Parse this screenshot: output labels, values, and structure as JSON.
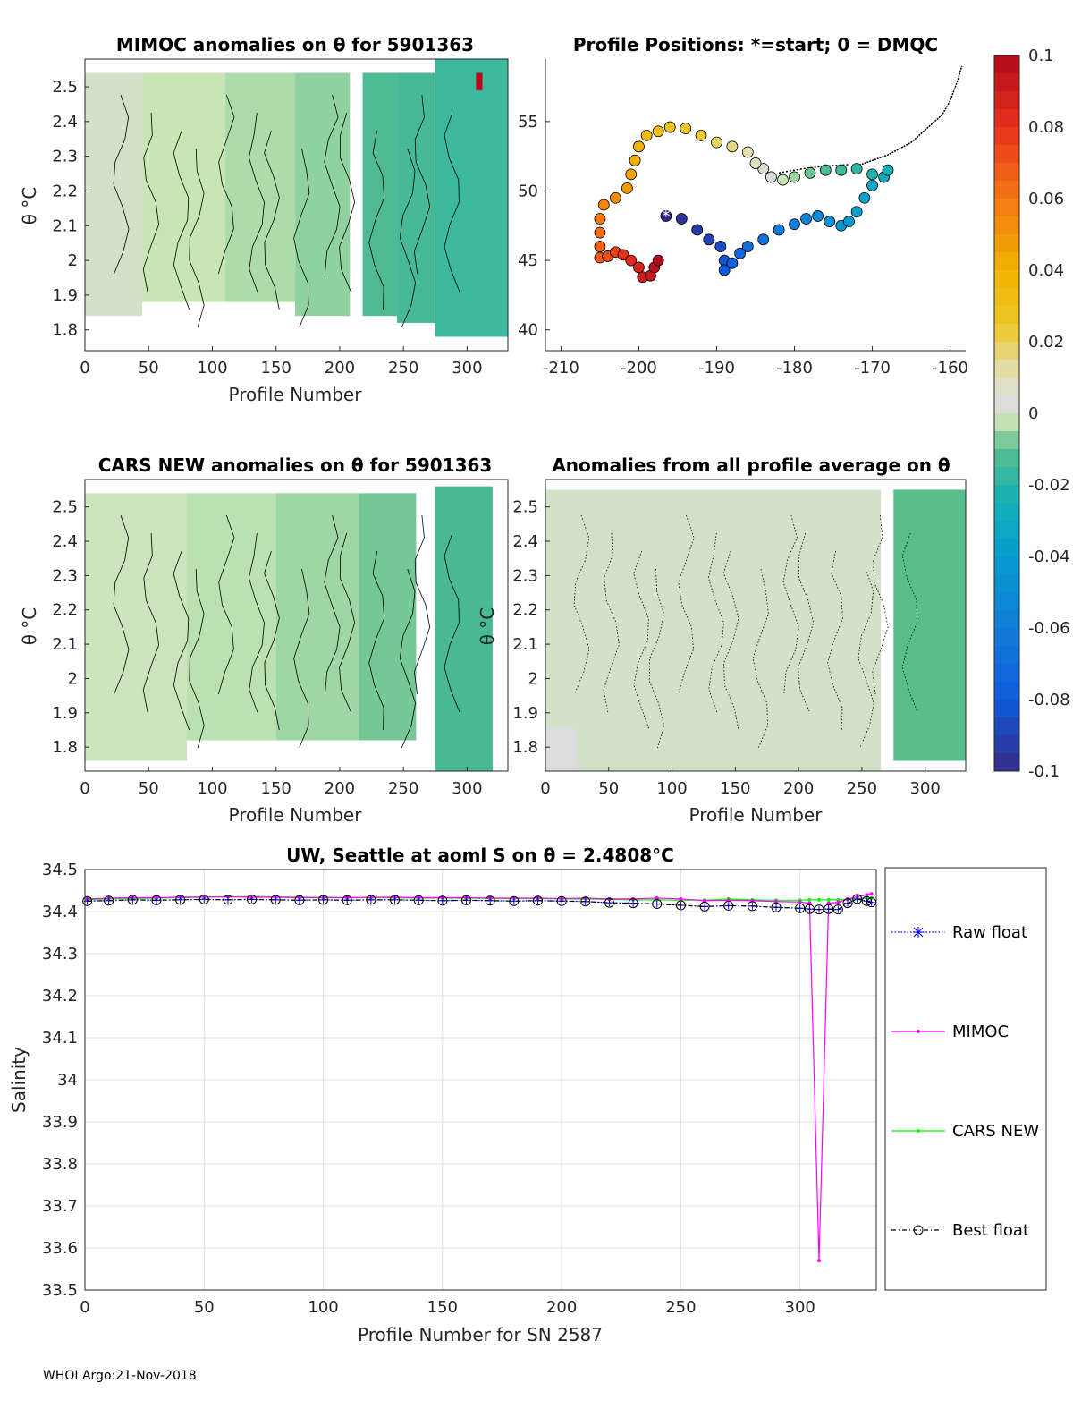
{
  "footer": "WHOI Argo:21-Nov-2018",
  "colorbar": {
    "ticks": [
      "0.1",
      "0.08",
      "0.06",
      "0.04",
      "0.02",
      "0",
      "-0.02",
      "-0.04",
      "-0.06",
      "-0.08",
      "-0.1"
    ],
    "range": [
      -0.1,
      0.1
    ]
  },
  "chart_data": [
    {
      "id": "mimoc",
      "type": "heatmap",
      "title": "MIMOC anomalies on θ  for 5901363",
      "xlabel": "Profile Number",
      "ylabel": "θ °C",
      "xlim": [
        0,
        332
      ],
      "ylim": [
        1.74,
        2.58
      ],
      "xticks": [
        "0",
        "50",
        "100",
        "150",
        "200",
        "250",
        "300"
      ],
      "yticks": [
        "1.8",
        "1.9",
        "2",
        "2.1",
        "2.2",
        "2.3",
        "2.4",
        "2.5"
      ],
      "blocks": [
        {
          "x0": 0,
          "x1": 45,
          "y0": 1.84,
          "y1": 2.54,
          "v": 0.0
        },
        {
          "x0": 45,
          "x1": 110,
          "y0": 1.88,
          "y1": 2.54,
          "v": -0.002
        },
        {
          "x0": 110,
          "x1": 165,
          "y0": 1.88,
          "y1": 2.54,
          "v": -0.004
        },
        {
          "x0": 165,
          "x1": 208,
          "y0": 1.84,
          "y1": 2.54,
          "v": -0.006
        },
        {
          "x0": 218,
          "x1": 245,
          "y0": 1.84,
          "y1": 2.54,
          "v": -0.012
        },
        {
          "x0": 245,
          "x1": 275,
          "y0": 1.82,
          "y1": 2.54,
          "v": -0.014
        },
        {
          "x0": 275,
          "x1": 332,
          "y0": 1.78,
          "y1": 2.58,
          "v": -0.016
        },
        {
          "x0": 307,
          "x1": 312,
          "y0": 2.49,
          "y1": 2.54,
          "v": 0.1
        }
      ]
    },
    {
      "id": "positions",
      "type": "scatter",
      "title": "Profile Positions: *=start; 0 = DMQC",
      "xlim": [
        -212,
        -158
      ],
      "ylim": [
        38.5,
        59.5
      ],
      "xticks": [
        "-210",
        "-200",
        "-190",
        "-180",
        "-170",
        "-160"
      ],
      "yticks": [
        "40",
        "45",
        "50",
        "55"
      ],
      "track": [
        [
          -196.5,
          48.2
        ],
        [
          -194.5,
          48.0
        ],
        [
          -192.5,
          47.2
        ],
        [
          -191.0,
          46.5
        ],
        [
          -189.5,
          46.0
        ],
        [
          -189.0,
          45.0
        ],
        [
          -189.0,
          44.3
        ],
        [
          -188.0,
          44.8
        ],
        [
          -187.0,
          45.5
        ],
        [
          -186.0,
          46.0
        ],
        [
          -184.0,
          46.5
        ],
        [
          -182.0,
          47.2
        ],
        [
          -180.0,
          47.6
        ],
        [
          -178.5,
          48.0
        ],
        [
          -177.0,
          48.2
        ],
        [
          -175.5,
          47.8
        ],
        [
          -174.0,
          47.5
        ],
        [
          -173.0,
          47.8
        ],
        [
          -172.0,
          48.5
        ],
        [
          -171.0,
          49.5
        ],
        [
          -170.0,
          50.4
        ],
        [
          -168.5,
          51.0
        ],
        [
          -168.0,
          51.5
        ],
        [
          -170.0,
          51.2
        ],
        [
          -172.0,
          51.6
        ],
        [
          -174.0,
          51.5
        ],
        [
          -176.0,
          51.5
        ],
        [
          -178.0,
          51.3
        ],
        [
          -180.0,
          51.0
        ],
        [
          -181.5,
          50.8
        ],
        [
          -183.0,
          51.0
        ],
        [
          -184.0,
          51.6
        ],
        [
          -185.0,
          52.0
        ],
        [
          -186.0,
          52.8
        ],
        [
          -188.0,
          53.2
        ],
        [
          -190.0,
          53.5
        ],
        [
          -192.0,
          54.0
        ],
        [
          -194.0,
          54.5
        ],
        [
          -196.0,
          54.6
        ],
        [
          -197.5,
          54.3
        ],
        [
          -199.0,
          54.0
        ],
        [
          -200.0,
          53.2
        ],
        [
          -200.5,
          52.2
        ],
        [
          -201.0,
          51.2
        ],
        [
          -201.5,
          50.2
        ],
        [
          -203.0,
          49.5
        ],
        [
          -204.5,
          49.0
        ],
        [
          -205.0,
          48.0
        ],
        [
          -205.0,
          47.0
        ],
        [
          -205.0,
          46.0
        ],
        [
          -205.0,
          45.2
        ],
        [
          -204.0,
          45.3
        ],
        [
          -203.0,
          45.6
        ],
        [
          -202.0,
          45.4
        ],
        [
          -201.0,
          45.0
        ],
        [
          -200.0,
          44.5
        ],
        [
          -199.5,
          43.8
        ],
        [
          -198.5,
          43.9
        ],
        [
          -198.0,
          44.5
        ],
        [
          -197.5,
          45.0
        ]
      ]
    },
    {
      "id": "cars",
      "type": "heatmap",
      "title": "CARS NEW anomalies on θ for 5901363",
      "xlabel": "Profile Number",
      "ylabel": "θ °C",
      "xlim": [
        0,
        332
      ],
      "ylim": [
        1.73,
        2.58
      ],
      "xticks": [
        "0",
        "50",
        "100",
        "150",
        "200",
        "250",
        "300"
      ],
      "yticks": [
        "1.8",
        "1.9",
        "2",
        "2.1",
        "2.2",
        "2.3",
        "2.4",
        "2.5"
      ],
      "blocks": [
        {
          "x0": 0,
          "x1": 80,
          "y0": 1.76,
          "y1": 2.54,
          "v": -0.001
        },
        {
          "x0": 80,
          "x1": 150,
          "y0": 1.82,
          "y1": 2.54,
          "v": -0.003
        },
        {
          "x0": 150,
          "x1": 215,
          "y0": 1.82,
          "y1": 2.54,
          "v": -0.005
        },
        {
          "x0": 215,
          "x1": 260,
          "y0": 1.82,
          "y1": 2.54,
          "v": -0.008
        },
        {
          "x0": 275,
          "x1": 320,
          "y0": 1.73,
          "y1": 2.56,
          "v": -0.013
        }
      ]
    },
    {
      "id": "profile-average",
      "type": "heatmap",
      "title": "Anomalies from all profile average on θ",
      "xlabel": "Profile Number",
      "ylabel": "θ °C",
      "xlim": [
        0,
        332
      ],
      "ylim": [
        1.73,
        2.58
      ],
      "xticks": [
        "0",
        "50",
        "100",
        "150",
        "200",
        "250",
        "300"
      ],
      "yticks": [
        "1.8",
        "1.9",
        "2",
        "2.1",
        "2.2",
        "2.3",
        "2.4",
        "2.5"
      ],
      "blocks": [
        {
          "x0": 0,
          "x1": 265,
          "y0": 1.73,
          "y1": 2.55,
          "v": 0.0
        },
        {
          "x0": 0,
          "x1": 25,
          "y0": 1.73,
          "y1": 1.86,
          "v": 0.002
        },
        {
          "x0": 275,
          "x1": 332,
          "y0": 1.76,
          "y1": 2.55,
          "v": -0.01
        }
      ]
    },
    {
      "id": "salinity",
      "type": "line",
      "title": "UW, Seattle at aoml S on θ = 2.4808°C",
      "xlabel": "Profile Number for SN 2587",
      "ylabel": "Salinity",
      "xlim": [
        0,
        332
      ],
      "ylim": [
        33.5,
        34.5
      ],
      "xticks": [
        "0",
        "50",
        "100",
        "150",
        "200",
        "250",
        "300"
      ],
      "yticks": [
        "34.5",
        "34.4",
        "34.3",
        "34.2",
        "34.1",
        "34",
        "33.9",
        "33.8",
        "33.7",
        "33.6",
        "33.5"
      ],
      "x": [
        1,
        10,
        20,
        30,
        40,
        50,
        60,
        70,
        80,
        90,
        100,
        110,
        120,
        130,
        140,
        150,
        160,
        170,
        180,
        190,
        200,
        210,
        220,
        230,
        240,
        250,
        260,
        270,
        280,
        290,
        300,
        304,
        308,
        312,
        316,
        320,
        324,
        328,
        330
      ],
      "series": [
        {
          "name": "Raw float",
          "color": "#0000ff",
          "values": [
            34.425,
            34.426,
            34.428,
            34.427,
            34.428,
            34.429,
            34.428,
            34.429,
            34.428,
            34.427,
            34.428,
            34.427,
            34.428,
            34.428,
            34.427,
            34.426,
            34.427,
            34.426,
            34.425,
            34.426,
            34.425,
            34.424,
            34.421,
            34.42,
            34.418,
            34.415,
            34.412,
            34.414,
            34.413,
            34.41,
            34.408,
            34.406,
            34.405,
            34.406,
            34.405,
            34.42,
            34.43,
            34.425,
            34.422
          ]
        },
        {
          "name": "MIMOC",
          "color": "#ff00ff",
          "values": [
            34.43,
            34.432,
            34.433,
            34.433,
            34.434,
            34.435,
            34.435,
            34.434,
            34.434,
            34.433,
            34.433,
            34.433,
            34.434,
            34.434,
            34.433,
            34.433,
            34.433,
            34.432,
            34.432,
            34.432,
            34.431,
            34.432,
            34.43,
            34.43,
            34.432,
            34.43,
            34.426,
            34.427,
            34.426,
            34.424,
            34.423,
            34.42,
            33.57,
            34.42,
            34.422,
            34.43,
            34.435,
            34.44,
            34.442
          ]
        },
        {
          "name": "CARS NEW",
          "color": "#00ff00",
          "values": [
            34.428,
            34.43,
            34.431,
            34.432,
            34.433,
            34.434,
            34.435,
            34.436,
            34.435,
            34.434,
            34.434,
            34.433,
            34.433,
            34.433,
            34.432,
            34.432,
            34.432,
            34.431,
            34.431,
            34.431,
            34.43,
            34.43,
            34.429,
            34.428,
            34.428,
            34.427,
            34.427,
            34.43,
            34.428,
            34.427,
            34.427,
            34.428,
            34.428,
            34.428,
            34.428,
            34.429,
            34.43,
            34.432,
            34.433
          ]
        },
        {
          "name": "Best float",
          "color": "#000000",
          "values": [
            34.425,
            34.426,
            34.428,
            34.427,
            34.428,
            34.429,
            34.428,
            34.429,
            34.428,
            34.427,
            34.428,
            34.427,
            34.428,
            34.428,
            34.427,
            34.426,
            34.427,
            34.426,
            34.425,
            34.426,
            34.425,
            34.424,
            34.421,
            34.42,
            34.418,
            34.415,
            34.412,
            34.414,
            34.413,
            34.41,
            34.408,
            34.406,
            34.405,
            34.406,
            34.405,
            34.42,
            34.43,
            34.425,
            34.422
          ]
        }
      ]
    }
  ]
}
